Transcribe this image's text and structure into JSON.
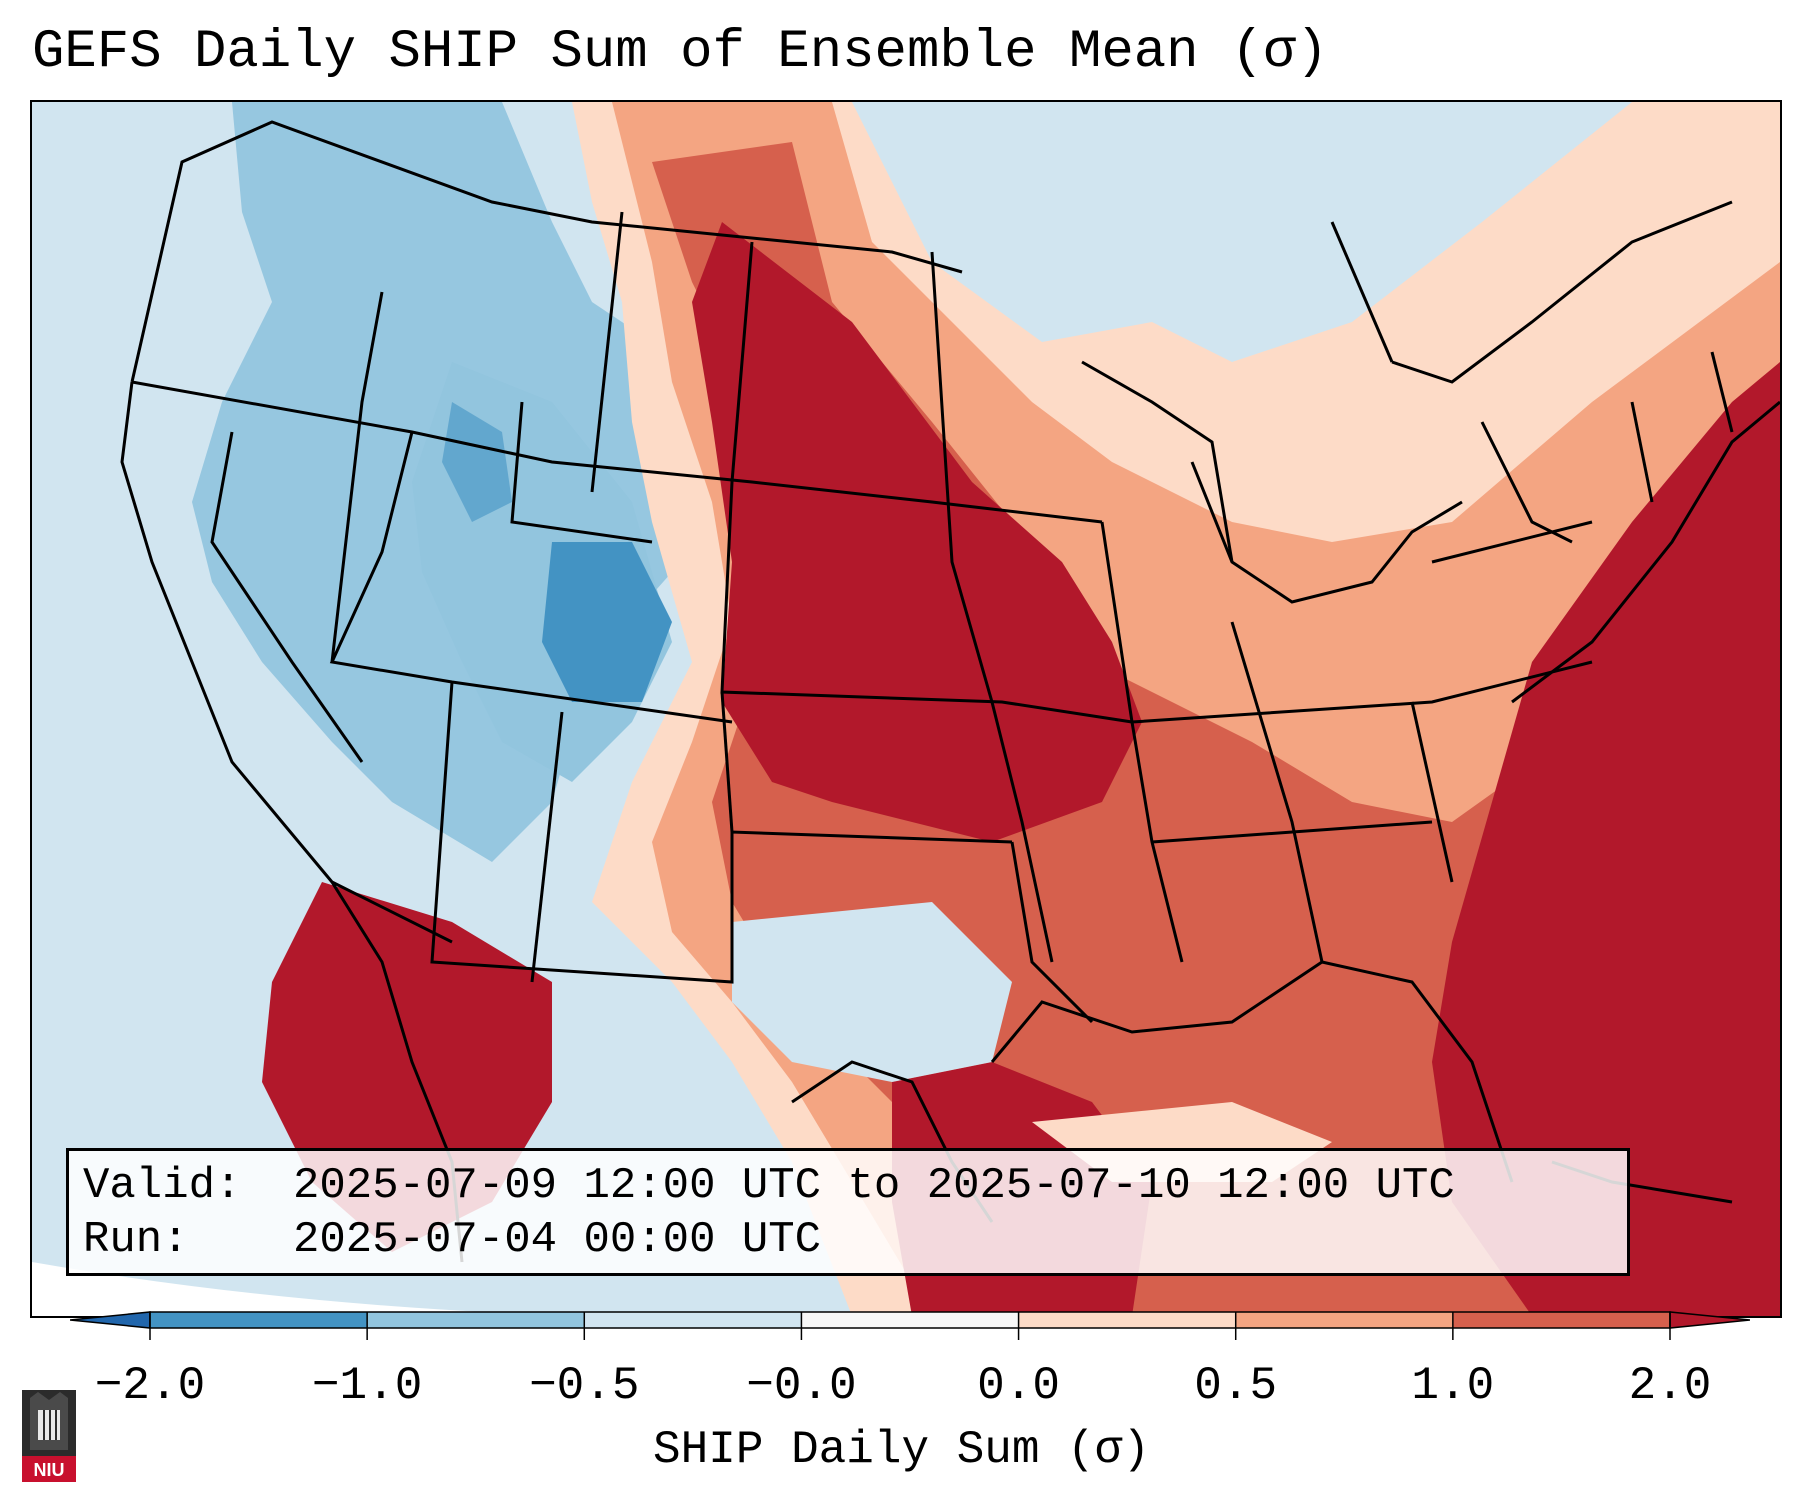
{
  "title": "GEFS Daily SHIP Sum of Ensemble Mean (σ)",
  "info": {
    "valid_label": "Valid:",
    "valid_value": "2025-07-09 12:00 UTC to 2025-07-10 12:00 UTC",
    "run_label": "Run:",
    "run_value": "2025-07-04 00:00 UTC"
  },
  "colorbar": {
    "label": "SHIP Daily Sum (σ)",
    "ticks": [
      "−2.0",
      "−1.0",
      "−0.5",
      "−0.0",
      "0.0",
      "0.5",
      "1.0",
      "2.0"
    ],
    "bins": [
      {
        "from": -2.0,
        "to": -1.0,
        "color": "#4393c3"
      },
      {
        "from": -1.0,
        "to": -0.5,
        "color": "#92c5de"
      },
      {
        "from": -0.5,
        "to": -0.0,
        "color": "#d1e5f0"
      },
      {
        "from": -0.0,
        "to": 0.0,
        "color": "#f7f7f7"
      },
      {
        "from": 0.0,
        "to": 0.5,
        "color": "#fddbc7"
      },
      {
        "from": 0.5,
        "to": 1.0,
        "color": "#f4a582"
      },
      {
        "from": 1.0,
        "to": 2.0,
        "color": "#d6604d"
      }
    ],
    "extend_low_color": "#2166ac",
    "extend_high_color": "#b2182b"
  },
  "logo": {
    "text": "NIU",
    "icon": "university-tower-icon"
  },
  "map": {
    "basemap_icon": "conus-state-outlines-icon"
  }
}
